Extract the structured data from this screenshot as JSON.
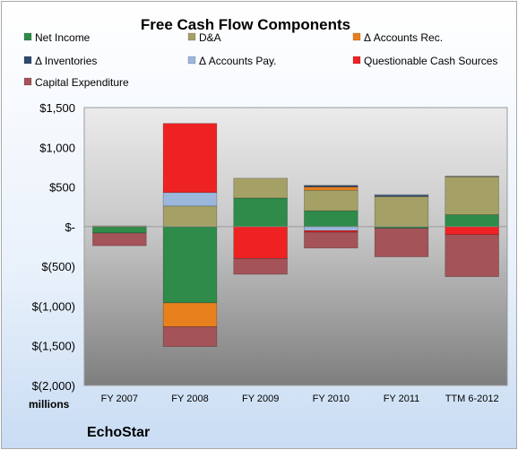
{
  "chart_data": {
    "type": "bar",
    "stacked": true,
    "title": "Free Cash Flow Components",
    "categories": [
      "FY 2007",
      "FY 2008",
      "FY 2009",
      "FY 2010",
      "FY 2011",
      "TTM 6-2012"
    ],
    "ylim": [
      -2000,
      1500
    ],
    "yticks": [
      1500,
      1000,
      500,
      0,
      -500,
      -1000,
      -1500,
      -2000
    ],
    "ytick_labels": [
      "$1,500",
      "$1,000",
      "$500",
      "$-",
      "$(500)",
      "$(1,000)",
      "$(1,500)",
      "$(2,000)"
    ],
    "unit_label": "millions",
    "grid": false,
    "legend_position": "top",
    "series": [
      {
        "name": "Net Income",
        "color": "#2e8b4a",
        "values": [
          -80,
          -960,
          360,
          200,
          -20,
          150
        ]
      },
      {
        "name": "D&A",
        "color": "#a5a066",
        "values": [
          10,
          260,
          250,
          260,
          380,
          480
        ]
      },
      {
        "name": "Δ Accounts Rec.",
        "color": "#e8801e",
        "values": [
          0,
          -300,
          0,
          40,
          0,
          0
        ]
      },
      {
        "name": "Δ Inventories",
        "color": "#2f4a6e",
        "values": [
          0,
          0,
          0,
          20,
          15,
          5
        ]
      },
      {
        "name": "Δ Accounts Pay.",
        "color": "#9bb7dc",
        "values": [
          0,
          170,
          0,
          -50,
          10,
          0
        ]
      },
      {
        "name": "Questionable Cash Sources",
        "color": "#ee2222",
        "values": [
          0,
          870,
          -400,
          -20,
          0,
          -100
        ]
      },
      {
        "name": "Capital Expenditure",
        "color": "#a45358",
        "values": [
          -160,
          -250,
          -200,
          -200,
          -360,
          -530
        ]
      }
    ]
  },
  "footer": {
    "company": "EchoStar"
  }
}
